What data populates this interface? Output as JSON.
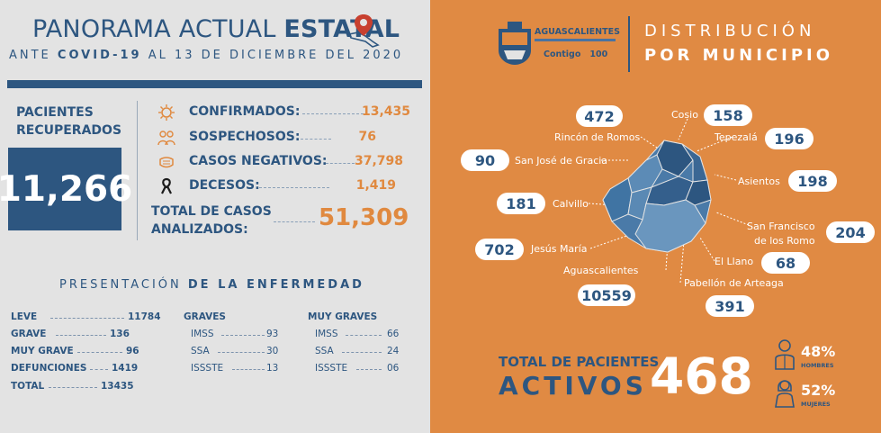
{
  "header": {
    "title_regular": "PANORAMA ACTUAL",
    "title_bold": "ESTATAL",
    "subtitle_pre": "ANTE",
    "subtitle_bold": "COVID-19",
    "subtitle_post": "AL 13 DE DICIEMBRE DEL 2020"
  },
  "recovered": {
    "label_line1": "PACIENTES",
    "label_line2": "RECUPERADOS",
    "value": "11,266"
  },
  "stats": [
    {
      "label": "CONFIRMADOS:",
      "value": "13,435",
      "icon": "virus-icon"
    },
    {
      "label": "SOSPECHOSOS:",
      "value": "76",
      "icon": "people-icon"
    },
    {
      "label": "CASOS NEGATIVOS:",
      "value": "37,798",
      "icon": "mask-icon"
    },
    {
      "label": "DECESOS:",
      "value": "1,419",
      "icon": "ribbon-icon"
    }
  ],
  "total_cases": {
    "label_line1": "TOTAL DE CASOS",
    "label_line2": "ANALIZADOS:",
    "value": "51,309"
  },
  "presentation": {
    "title_regular": "PRESENTACIÓN",
    "title_bold": "DE LA ENFERMEDAD",
    "col1": [
      {
        "label": "LEVE",
        "value": "11784"
      },
      {
        "label": "GRAVE",
        "value": "136"
      },
      {
        "label": "MUY GRAVE",
        "value": "96"
      },
      {
        "label": "DEFUNCIONES",
        "value": "1419"
      },
      {
        "label": "TOTAL",
        "value": "13435"
      }
    ],
    "col2_header": "GRAVES",
    "col2": [
      {
        "label": "IMSS",
        "value": "93"
      },
      {
        "label": "SSA",
        "value": "30"
      },
      {
        "label": "ISSSTE",
        "value": "13"
      }
    ],
    "col3_header": "MUY GRAVES",
    "col3": [
      {
        "label": "IMSS",
        "value": "66"
      },
      {
        "label": "SSA",
        "value": "24"
      },
      {
        "label": "ISSSTE",
        "value": "06"
      }
    ]
  },
  "brand": {
    "state": "AGUASCALIENTES",
    "slogan": "Contigo",
    "number": "100",
    "colors": {
      "navy": "#2d5680",
      "orange": "#e08a43",
      "accent_orange": "#e0893f"
    }
  },
  "distribution": {
    "title_line1": "DISTRIBUCIÓN",
    "title_line2": "POR MUNICIPIO",
    "municipalities": [
      {
        "name": "Rincón de Romos",
        "value": "472"
      },
      {
        "name": "Cosio",
        "value": "158"
      },
      {
        "name": "Tepezalá",
        "value": "196"
      },
      {
        "name": "San José de Gracia",
        "value": "90"
      },
      {
        "name": "Asientos",
        "value": "198"
      },
      {
        "name": "Calvillo",
        "value": "181"
      },
      {
        "name": "San Francisco",
        "name2": "de los Romo",
        "value": "204"
      },
      {
        "name": "Jesús María",
        "value": "702"
      },
      {
        "name": "El Llano",
        "value": "68"
      },
      {
        "name": "Aguascalientes",
        "value": "10559"
      },
      {
        "name": "Pabellón de Arteaga",
        "value": "391"
      }
    ]
  },
  "active": {
    "label_line1": "TOTAL DE PACIENTES",
    "label_line2": "ACTIVOS",
    "value": "468",
    "men_pct": "48%",
    "men_label": "HOMBRES",
    "women_pct": "52%",
    "women_label": "MUJERES"
  }
}
